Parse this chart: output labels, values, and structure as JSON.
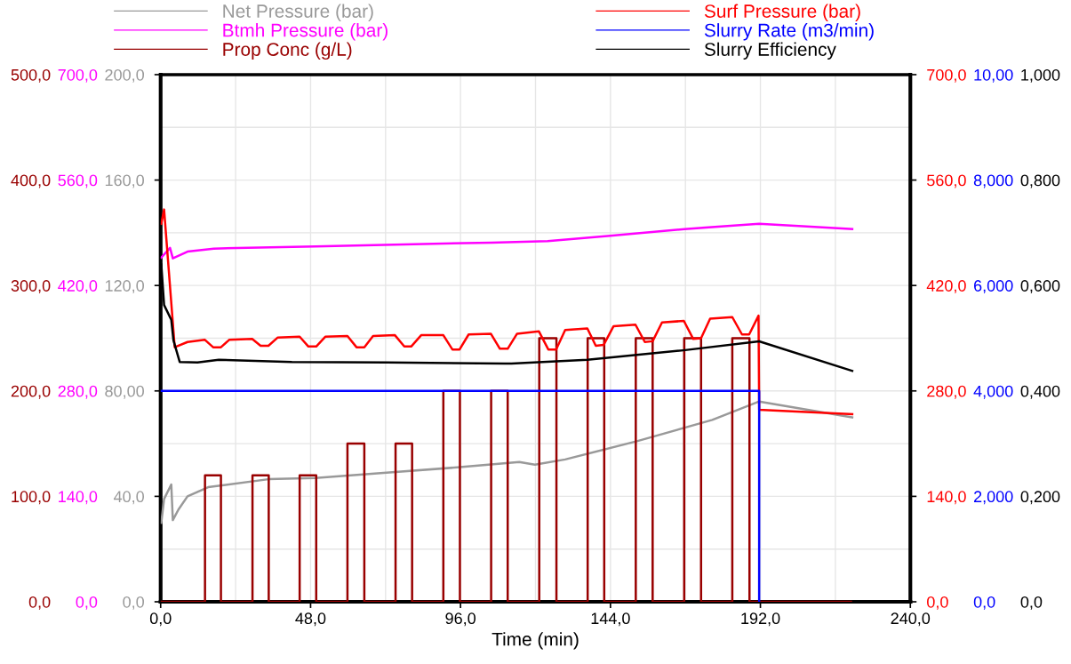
{
  "chart_data": [
    {
      "type": "line",
      "xlabel": "Time (min)",
      "legend": "top left",
      "grid": true,
      "xlim": [
        0,
        240
      ],
      "xticks": [
        {
          "value": 0,
          "label": "0,0"
        },
        {
          "value": 48,
          "label": "48,0"
        },
        {
          "value": 96,
          "label": "96,0"
        },
        {
          "value": 144,
          "label": "144,0"
        },
        {
          "value": 192,
          "label": "192,0"
        },
        {
          "value": 240,
          "label": "240,0"
        }
      ],
      "ylim": [
        0,
        200
      ],
      "yticks": [
        {
          "value": 0,
          "label": "0,0"
        },
        {
          "value": 40,
          "label": "40,0"
        },
        {
          "value": 80,
          "label": "80,00"
        },
        {
          "value": 120,
          "label": "120,0"
        },
        {
          "value": 160,
          "label": "160,0"
        },
        {
          "value": 200,
          "label": "200,0"
        }
      ],
      "y2lim": [
        0,
        700
      ],
      "y2ticks": [
        {
          "value": 0,
          "label": "0,0"
        },
        {
          "value": 140,
          "label": "140,0"
        },
        {
          "value": 280,
          "label": "280,0"
        },
        {
          "value": 420,
          "label": "420,0"
        },
        {
          "value": 560,
          "label": "560,0"
        },
        {
          "value": 700,
          "label": "700,0"
        }
      ],
      "y3lim": [
        0,
        500
      ],
      "y3ticks": [
        {
          "value": 0,
          "label": "0,0"
        },
        {
          "value": 100,
          "label": "100,0"
        },
        {
          "value": 200,
          "label": "200,0"
        },
        {
          "value": 300,
          "label": "300,0"
        },
        {
          "value": 400,
          "label": "400,0"
        },
        {
          "value": 500,
          "label": "500,0"
        }
      ],
      "series": [
        {
          "name": "Net Pressure (bar)",
          "color": "#999999",
          "x": [
            0.2,
            1.1,
            3.4,
            3.9,
            5.7,
            8.6,
            15.2,
            34.5,
            49.5,
            72.3,
            95.0,
            114.8,
            119.8,
            129.5,
            152.7,
            176.6,
            191.6,
            221.4
          ],
          "values": [
            30,
            39,
            44.5,
            31,
            35,
            40,
            43.5,
            46.5,
            47,
            49,
            51,
            53,
            52,
            54,
            61,
            69,
            76,
            70
          ]
        },
        {
          "name": "Btmh Pressure (bar)",
          "color": "#ff00ff",
          "axis": "y2",
          "x": [
            0.2,
            3.0,
            3.9,
            8.6,
            17.0,
            49.5,
            105.9,
            123.9,
            143.9,
            167.7,
            191.6,
            221.4
          ],
          "values": [
            457,
            470,
            456,
            465,
            469,
            472,
            477,
            479,
            486,
            495,
            502,
            495
          ]
        },
        {
          "name": "Prop Conc (g/L)",
          "color": "#990000",
          "axis": "y3",
          "type": "step",
          "x": [
            0,
            14.2,
            19.3,
            29.4,
            34.6,
            44.5,
            49.8,
            59.8,
            65.2,
            75.2,
            80.5,
            90.5,
            95.8,
            105.8,
            111.1,
            121.2,
            126.7,
            136.7,
            142.0,
            152.1,
            157.5,
            167.6,
            173.0,
            183.0,
            188.5,
            221.0
          ],
          "values": [
            0,
            120,
            0,
            120,
            0,
            120,
            0,
            150,
            0,
            150,
            0,
            200,
            0,
            200,
            0,
            250,
            0,
            250,
            0,
            250,
            0,
            250,
            0,
            250,
            0,
            0
          ]
        }
      ]
    },
    {
      "type": "line",
      "legend": "top right",
      "tick_labels": "y",
      "xlim": [
        0,
        240
      ],
      "ylim": [
        0,
        700
      ],
      "yticks": [
        {
          "value": 0,
          "label": "0,0"
        },
        {
          "value": 140,
          "label": "140,0"
        },
        {
          "value": 280,
          "label": "280,0"
        },
        {
          "value": 420,
          "label": "420,0"
        },
        {
          "value": 560,
          "label": "560,0"
        },
        {
          "value": 700,
          "label": "700,0"
        }
      ],
      "y2lim": [
        0,
        10
      ],
      "y2ticks": [
        {
          "value": 0,
          "label": "0,0"
        },
        {
          "value": 2,
          "label": "2,000"
        },
        {
          "value": 4,
          "label": "4,000"
        },
        {
          "value": 6,
          "label": "6,000"
        },
        {
          "value": 8,
          "label": "8,000"
        },
        {
          "value": 10,
          "label": "10,00"
        }
      ],
      "y3lim": [
        0,
        1
      ],
      "y3ticks": [
        {
          "value": 0,
          "label": "0,0"
        },
        {
          "value": 0.2,
          "label": "0,200"
        },
        {
          "value": 0.4,
          "label": "0,400"
        },
        {
          "value": 0.6,
          "label": "0,600"
        },
        {
          "value": 0.8,
          "label": "0,800"
        },
        {
          "value": 1,
          "label": "1,000"
        }
      ],
      "series": [
        {
          "name": "Surf Pressure (bar)",
          "color": "#ff0000",
          "x": [
            0.2,
            1.1,
            4.5,
            8.6,
            14.1,
            16.8,
            19.3,
            22.0,
            29.3,
            32.0,
            34.5,
            37.5,
            44.5,
            47.3,
            49.8,
            52.7,
            59.8,
            62.7,
            65.2,
            68.0,
            75.0,
            78.0,
            80.2,
            83.4,
            90.5,
            93.4,
            95.7,
            98.6,
            105.7,
            108.6,
            111.1,
            114.1,
            121.1,
            124.1,
            126.6,
            129.5,
            136.6,
            139.3,
            141.8,
            145.0,
            152.0,
            155.0,
            157.5,
            160.5,
            167.5,
            170.5,
            173.0,
            175.9,
            183.0,
            186.1,
            188.4,
            191.4,
            191.6,
            221.4
          ],
          "values": [
            502,
            521,
            338,
            345,
            348,
            338,
            338,
            348,
            349,
            340,
            340,
            351,
            352,
            339,
            339,
            352,
            353,
            338,
            338,
            353,
            354,
            339,
            339,
            354,
            354,
            335,
            335,
            355,
            356,
            336,
            336,
            356,
            359,
            335,
            335,
            361,
            363,
            340,
            341,
            366,
            368,
            345,
            346,
            371,
            373,
            349,
            350,
            376,
            378,
            355,
            355,
            380,
            255,
            249
          ]
        },
        {
          "name": "Slurry Rate (m3/min)",
          "color": "#0000ff",
          "axis": "y2",
          "x": [
            0.2,
            191.6,
            191.6
          ],
          "values": [
            4,
            4,
            0
          ]
        },
        {
          "name": "Slurry Efficiency",
          "color": "#000000",
          "axis": "y3",
          "x": [
            0.2,
            1.1,
            3.4,
            4.1,
            6.1,
            11.8,
            18.6,
            42.0,
            72.3,
            110.2,
            112.3,
            136.6,
            167.3,
            191.6,
            221.4
          ],
          "values": [
            0.64,
            0.563,
            0.535,
            0.496,
            0.455,
            0.454,
            0.459,
            0.455,
            0.454,
            0.452,
            0.452,
            0.459,
            0.477,
            0.494,
            0.438
          ]
        }
      ]
    }
  ]
}
